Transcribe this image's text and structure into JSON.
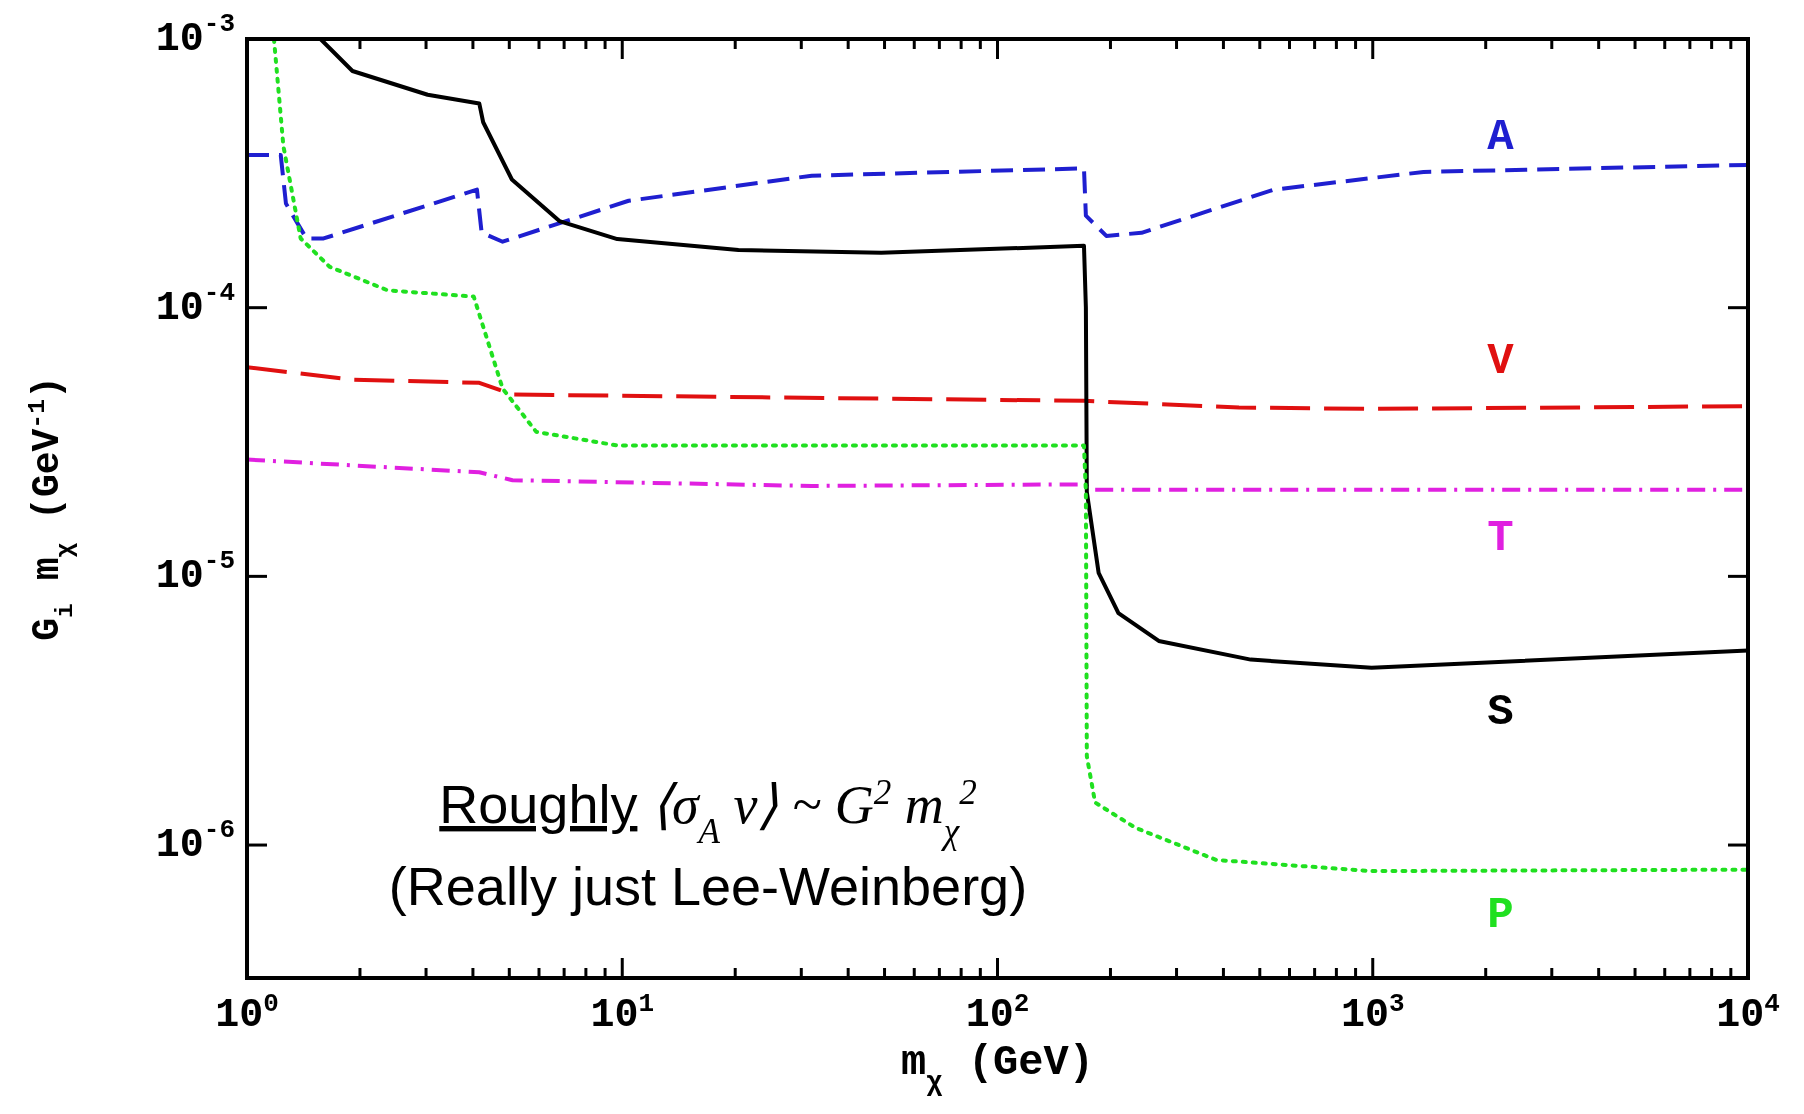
{
  "chart_data": {
    "type": "line",
    "xlabel": "m$_{χ}$  (GeV)",
    "ylabel": "G$_{i}$ m$_{χ}$  (GeV$^{-1}$)",
    "log": "xy",
    "grid": false,
    "legend": false,
    "xlim": [
      1,
      10000
    ],
    "ylim": [
      3.2e-07,
      0.001
    ],
    "xticks": [
      {
        "value": 1,
        "label": "10$^{0}$"
      },
      {
        "value": 10,
        "label": "10$^{1}$"
      },
      {
        "value": 100,
        "label": "10$^{2}$"
      },
      {
        "value": 1000,
        "label": "10$^{3}$"
      },
      {
        "value": 10000,
        "label": "10$^{4}$"
      },
      {
        "value": 2,
        "label": null
      },
      {
        "value": 3,
        "label": null
      },
      {
        "value": 4,
        "label": null
      },
      {
        "value": 5,
        "label": null
      },
      {
        "value": 6,
        "label": null
      },
      {
        "value": 7,
        "label": null
      },
      {
        "value": 8,
        "label": null
      },
      {
        "value": 9,
        "label": null
      },
      {
        "value": 20,
        "label": null
      },
      {
        "value": 30,
        "label": null
      },
      {
        "value": 40,
        "label": null
      },
      {
        "value": 50,
        "label": null
      },
      {
        "value": 60,
        "label": null
      },
      {
        "value": 70,
        "label": null
      },
      {
        "value": 80,
        "label": null
      },
      {
        "value": 90,
        "label": null
      },
      {
        "value": 200,
        "label": null
      },
      {
        "value": 300,
        "label": null
      },
      {
        "value": 400,
        "label": null
      },
      {
        "value": 500,
        "label": null
      },
      {
        "value": 600,
        "label": null
      },
      {
        "value": 700,
        "label": null
      },
      {
        "value": 800,
        "label": null
      },
      {
        "value": 900,
        "label": null
      },
      {
        "value": 2000,
        "label": null
      },
      {
        "value": 3000,
        "label": null
      },
      {
        "value": 4000,
        "label": null
      },
      {
        "value": 5000,
        "label": null
      },
      {
        "value": 6000,
        "label": null
      },
      {
        "value": 7000,
        "label": null
      },
      {
        "value": 8000,
        "label": null
      },
      {
        "value": 9000,
        "label": null
      }
    ],
    "yticks": [
      {
        "value": 0.001,
        "label": "10$^{-3}$"
      },
      {
        "value": 0.0001,
        "label": "10$^{-4}$"
      },
      {
        "value": 1e-05,
        "label": "10$^{-5}$"
      },
      {
        "value": 1e-06,
        "label": "10$^{-6}$"
      }
    ],
    "annotations": [
      "Roughly ⟨σ$_{A}$ v⟩ ~ G$^{2}$ m$_{χ}$$^{2}$",
      "(Really just Lee-Weinberg)"
    ],
    "series": [
      {
        "name": "A",
        "color": "#1f1fd0",
        "line_style": "dashed",
        "x": [
          1,
          1.23,
          1.27,
          1.44,
          1.6,
          4.1,
          4.22,
          4.8,
          10.4,
          32,
          170,
          172,
          195,
          242,
          545,
          1365,
          10000
        ],
        "values": [
          0.00037,
          0.00037,
          0.000244,
          0.000181,
          0.000181,
          0.000275,
          0.00019,
          0.000176,
          0.00025,
          0.00031,
          0.00033,
          0.00022,
          0.000185,
          0.00019,
          0.000275,
          0.00032,
          0.00034
        ]
      },
      {
        "name": "V",
        "color": "#e01010",
        "line_style": "longdashed",
        "x": [
          1,
          1.91,
          4.16,
          5.1,
          170,
          440,
          1000,
          10000
        ],
        "values": [
          6e-05,
          5.4e-05,
          5.25e-05,
          4.75e-05,
          4.5e-05,
          4.25e-05,
          4.2e-05,
          4.3e-05
        ]
      },
      {
        "name": "T",
        "color": "#e020e0",
        "line_style": "dashdot",
        "x": [
          1,
          4.16,
          5.1,
          32,
          170,
          180,
          10000
        ],
        "values": [
          2.72e-05,
          2.44e-05,
          2.28e-05,
          2.17e-05,
          2.2e-05,
          2.1e-05,
          2.1e-05
        ]
      },
      {
        "name": "S",
        "color": "#000000",
        "line_style": "solid",
        "x": [
          1.57,
          1.91,
          3.03,
          4.16,
          4.26,
          5.08,
          6.8,
          9.7,
          20.4,
          49,
          170,
          172,
          173,
          186,
          210,
          269,
          473,
          993,
          10000
        ],
        "values": [
          0.001,
          0.00076,
          0.00062,
          0.000575,
          0.00049,
          0.0003,
          0.00021,
          0.00018,
          0.000164,
          0.00016,
          0.00017,
          0.0001,
          2.06e-05,
          1.03e-05,
          7.3e-06,
          5.75e-06,
          4.9e-06,
          4.57e-06,
          5.3e-06
        ]
      },
      {
        "name": "P",
        "color": "#20e020",
        "line_style": "dotted",
        "x": [
          1.18,
          1.25,
          1.39,
          1.66,
          2.37,
          4.02,
          4.8,
          5.9,
          9.7,
          170,
          172,
          173,
          182,
          233,
          383,
          993,
          10000
        ],
        "values": [
          0.001,
          0.0004,
          0.000181,
          0.000142,
          0.000116,
          0.00011,
          5e-05,
          3.45e-05,
          3.07e-05,
          3.07e-05,
          2.06e-05,
          2.14e-06,
          1.44e-06,
          1.16e-06,
          8.8e-07,
          8e-07,
          8.1e-07
        ]
      }
    ]
  }
}
